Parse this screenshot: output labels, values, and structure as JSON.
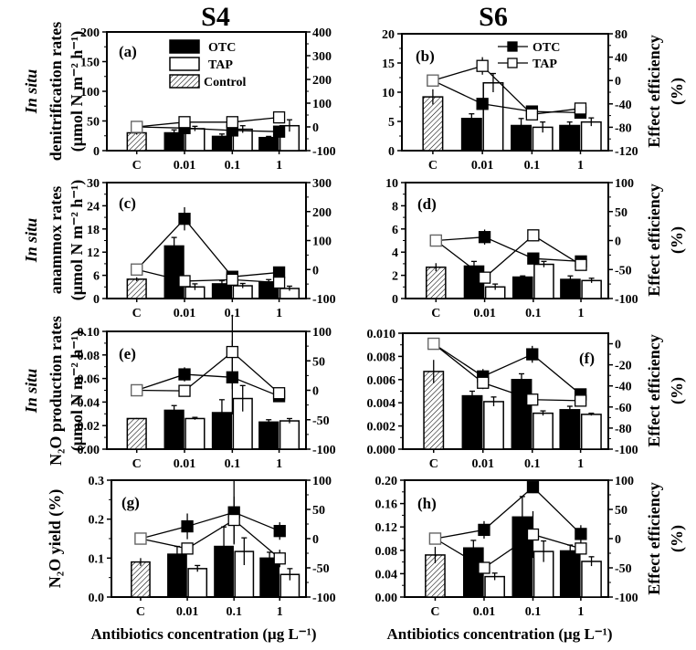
{
  "figure": {
    "column_titles": [
      "S4",
      "S6"
    ],
    "row_labels": [
      {
        "line1": "In situ",
        "line2": "denitrification rates",
        "line3": "(μmol N m⁻² h⁻¹)"
      },
      {
        "line1": "In situ",
        "line2": "anammox rates",
        "line3": "(μmol N m⁻² h⁻¹)"
      },
      {
        "line1": "In situ",
        "line2": "N₂O production rates",
        "line3": "(μmol N m⁻² h⁻¹)"
      },
      {
        "line1": "",
        "line2": "N₂O yield (%)",
        "line3": ""
      }
    ],
    "right_axis_label": {
      "line1": "Effect efficiency",
      "line2": "(%)"
    },
    "x_axis_label": "Antibiotics concentration  (μg L⁻¹)",
    "legend_bars": [
      "OTC",
      "TAP",
      "Control"
    ],
    "legend_lines": [
      "OTC",
      "TAP"
    ]
  },
  "chart_data": [
    {
      "type": "bar",
      "panel": "(a)",
      "column": "S4",
      "categories": [
        "C",
        "0.01",
        "0.1",
        "1"
      ],
      "ylabel": "In situ denitrification rates (μmol N m⁻² h⁻¹)",
      "ylim": [
        0,
        200
      ],
      "yticks": [
        0,
        50,
        100,
        150,
        200
      ],
      "y2label": "Effect efficiency (%)",
      "y2lim": [
        -100,
        400
      ],
      "y2ticks": [
        -100,
        0,
        100,
        200,
        300,
        400
      ],
      "control": {
        "value": 30,
        "err": 3
      },
      "series": [
        {
          "name": "OTC",
          "values": [
            null,
            30,
            24,
            22
          ],
          "errors": [
            null,
            5,
            4,
            2
          ]
        },
        {
          "name": "TAP",
          "values": [
            null,
            37,
            36,
            42
          ],
          "errors": [
            null,
            4,
            6,
            10
          ]
        }
      ],
      "effect_series": [
        {
          "name": "OTC",
          "values": [
            0,
            -5,
            -15,
            -20
          ],
          "errors": [
            0,
            6,
            10,
            10
          ]
        },
        {
          "name": "TAP",
          "values": [
            0,
            20,
            20,
            40
          ],
          "errors": [
            0,
            10,
            15,
            25
          ]
        }
      ],
      "legend": "bars",
      "legend_position": "top-center"
    },
    {
      "type": "bar",
      "panel": "(b)",
      "column": "S6",
      "categories": [
        "C",
        "0.01",
        "0.1",
        "1"
      ],
      "ylim": [
        0,
        20
      ],
      "yticks": [
        0,
        5,
        10,
        15,
        20
      ],
      "y2label": "Effect efficiency (%)",
      "y2lim": [
        -120,
        80
      ],
      "y2ticks": [
        -120,
        -80,
        -40,
        0,
        40,
        80
      ],
      "control": {
        "value": 9.2,
        "err": 1.3
      },
      "series": [
        {
          "name": "OTC",
          "values": [
            null,
            5.5,
            4.3,
            4.3
          ],
          "errors": [
            null,
            0.8,
            1.2,
            0.6
          ]
        },
        {
          "name": "TAP",
          "values": [
            null,
            11.6,
            4.0,
            4.9
          ],
          "errors": [
            null,
            1.6,
            0.9,
            0.7
          ]
        }
      ],
      "effect_series": [
        {
          "name": "OTC",
          "values": [
            0,
            -40,
            -53,
            -55
          ],
          "errors": [
            0,
            6,
            6,
            5
          ]
        },
        {
          "name": "TAP",
          "values": [
            0,
            25,
            -58,
            -48
          ],
          "errors": [
            0,
            15,
            8,
            6
          ]
        }
      ],
      "legend": "lines",
      "legend_position": "top-center"
    },
    {
      "type": "bar",
      "panel": "(c)",
      "column": "S4",
      "categories": [
        "C",
        "0.01",
        "0.1",
        "1"
      ],
      "ylabel": "In situ anammox rates (μmol N m⁻² h⁻¹)",
      "ylim": [
        0,
        30
      ],
      "yticks": [
        0,
        6,
        12,
        18,
        24,
        30
      ],
      "y2lim": [
        -100,
        300
      ],
      "y2ticks": [
        -100,
        0,
        100,
        200,
        300
      ],
      "control": {
        "value": 5.0,
        "err": 0.5
      },
      "series": [
        {
          "name": "OTC",
          "values": [
            null,
            13.6,
            3.8,
            4.3
          ],
          "errors": [
            null,
            2.2,
            0.8,
            0.6
          ]
        },
        {
          "name": "TAP",
          "values": [
            null,
            3.0,
            3.3,
            2.6
          ],
          "errors": [
            null,
            0.8,
            0.6,
            0.6
          ]
        }
      ],
      "effect_series": [
        {
          "name": "OTC",
          "values": [
            0,
            175,
            -25,
            -10
          ],
          "errors": [
            0,
            40,
            5,
            3
          ]
        },
        {
          "name": "TAP",
          "values": [
            0,
            -40,
            -35,
            -45
          ],
          "errors": [
            0,
            5,
            5,
            4
          ]
        }
      ]
    },
    {
      "type": "bar",
      "panel": "(d)",
      "column": "S6",
      "categories": [
        "C",
        "0.01",
        "0.1",
        "1"
      ],
      "ylim": [
        0,
        10
      ],
      "yticks": [
        0,
        2,
        4,
        6,
        8,
        10
      ],
      "y2label": "Effect efficiency (%)",
      "y2lim": [
        -100,
        100
      ],
      "y2ticks": [
        -100,
        -50,
        0,
        50,
        100
      ],
      "control": {
        "value": 2.7,
        "err": 0.35
      },
      "series": [
        {
          "name": "OTC",
          "values": [
            null,
            2.8,
            1.85,
            1.65
          ],
          "errors": [
            null,
            0.4,
            0.1,
            0.3
          ]
        },
        {
          "name": "TAP",
          "values": [
            null,
            1.0,
            2.95,
            1.55
          ],
          "errors": [
            null,
            0.25,
            0.25,
            0.2
          ]
        }
      ],
      "effect_series": [
        {
          "name": "OTC",
          "values": [
            0,
            6,
            -31,
            -36
          ],
          "errors": [
            0,
            13,
            4,
            6
          ]
        },
        {
          "name": "TAP",
          "values": [
            0,
            -64,
            9,
            -42
          ],
          "errors": [
            0,
            6,
            10,
            7
          ]
        }
      ]
    },
    {
      "type": "bar",
      "panel": "(e)",
      "column": "S4",
      "categories": [
        "C",
        "0.01",
        "0.1",
        "1"
      ],
      "ylabel": "In situ N₂O production rates (μmol N m⁻² h⁻¹)",
      "ylim": [
        0,
        0.1
      ],
      "yticks": [
        0.0,
        0.02,
        0.04,
        0.06,
        0.08,
        0.1
      ],
      "y2lim": [
        -100,
        100
      ],
      "y2ticks": [
        -100,
        -50,
        0,
        50,
        100
      ],
      "control": {
        "value": 0.026,
        "err": 0.0005
      },
      "series": [
        {
          "name": "OTC",
          "values": [
            null,
            0.033,
            0.031,
            0.023
          ],
          "errors": [
            null,
            0.004,
            0.011,
            0.002
          ]
        },
        {
          "name": "TAP",
          "values": [
            null,
            0.026,
            0.043,
            0.024
          ],
          "errors": [
            null,
            0.001,
            0.011,
            0.002
          ]
        }
      ],
      "effect_series": [
        {
          "name": "OTC",
          "values": [
            0,
            27,
            22,
            -10
          ],
          "errors": [
            0,
            12,
            63,
            5
          ]
        },
        {
          "name": "TAP",
          "values": [
            0,
            -1,
            65,
            -5
          ],
          "errors": [
            0,
            2,
            63,
            4
          ]
        }
      ]
    },
    {
      "type": "bar",
      "panel": "(f)",
      "column": "S6",
      "categories": [
        "C",
        "0.01",
        "0.1",
        "1"
      ],
      "ylim": [
        0,
        0.01
      ],
      "yticks": [
        0.0,
        0.002,
        0.004,
        0.006,
        0.008,
        0.01
      ],
      "y2label": "Effect efficiency (%)",
      "y2lim": [
        -100,
        10
      ],
      "y2ticks": [
        -100,
        -80,
        -60,
        -40,
        -20,
        0
      ],
      "control": {
        "value": 0.0067,
        "err": 0.001
      },
      "series": [
        {
          "name": "OTC",
          "values": [
            null,
            0.0046,
            0.006,
            0.0034
          ],
          "errors": [
            null,
            0.0004,
            0.0005,
            0.0003
          ]
        },
        {
          "name": "TAP",
          "values": [
            null,
            0.0041,
            0.0031,
            0.003
          ],
          "errors": [
            null,
            0.0004,
            0.0002,
            0.0001
          ]
        }
      ],
      "effect_series": [
        {
          "name": "OTC",
          "values": [
            0,
            -31,
            -10,
            -48
          ],
          "errors": [
            0,
            7,
            8,
            5
          ]
        },
        {
          "name": "TAP",
          "values": [
            0,
            -37,
            -53,
            -54
          ],
          "errors": [
            0,
            6,
            5,
            5
          ]
        }
      ]
    },
    {
      "type": "bar",
      "panel": "(g)",
      "column": "S4",
      "categories": [
        "C",
        "0.01",
        "0.1",
        "1"
      ],
      "ylabel": "N₂O yield (%)",
      "xlabel": "Antibiotics concentration (μg L⁻¹)",
      "ylim": [
        0,
        0.3
      ],
      "yticks": [
        0.0,
        0.1,
        0.2,
        0.3
      ],
      "y2lim": [
        -100,
        100
      ],
      "y2ticks": [
        -100,
        -50,
        0,
        50,
        100
      ],
      "control": {
        "value": 0.09,
        "err": 0.01
      },
      "series": [
        {
          "name": "OTC",
          "values": [
            null,
            0.11,
            0.13,
            0.1
          ],
          "errors": [
            null,
            0.02,
            0.05,
            0.015
          ]
        },
        {
          "name": "TAP",
          "values": [
            null,
            0.073,
            0.117,
            0.058
          ],
          "errors": [
            null,
            0.008,
            0.035,
            0.015
          ]
        }
      ],
      "effect_series": [
        {
          "name": "OTC",
          "values": [
            0,
            21,
            45,
            13
          ],
          "errors": [
            0,
            22,
            55,
            15
          ]
        },
        {
          "name": "TAP",
          "values": [
            0,
            -17,
            32,
            -34
          ],
          "errors": [
            0,
            5,
            40,
            15
          ]
        }
      ]
    },
    {
      "type": "bar",
      "panel": "(h)",
      "column": "S6",
      "categories": [
        "C",
        "0.01",
        "0.1",
        "1"
      ],
      "xlabel": "Antibiotics concentration (μg L⁻¹)",
      "ylim": [
        0,
        0.2
      ],
      "yticks": [
        0.0,
        0.04,
        0.08,
        0.12,
        0.16,
        0.2
      ],
      "y2label": "Effect efficiency (%)",
      "y2lim": [
        -100,
        100
      ],
      "y2ticks": [
        -100,
        -50,
        0,
        50,
        100
      ],
      "control": {
        "value": 0.072,
        "err": 0.014
      },
      "series": [
        {
          "name": "OTC",
          "values": [
            null,
            0.084,
            0.137,
            0.079
          ],
          "errors": [
            null,
            0.013,
            0.035,
            0.01
          ]
        },
        {
          "name": "TAP",
          "values": [
            null,
            0.035,
            0.078,
            0.061
          ],
          "errors": [
            null,
            0.006,
            0.018,
            0.008
          ]
        }
      ],
      "effect_series": [
        {
          "name": "OTC",
          "values": [
            0,
            15,
            88,
            8
          ],
          "errors": [
            0,
            15,
            10,
            15
          ]
        },
        {
          "name": "TAP",
          "values": [
            0,
            -50,
            7,
            -17
          ],
          "errors": [
            0,
            5,
            40,
            10
          ]
        }
      ]
    }
  ]
}
